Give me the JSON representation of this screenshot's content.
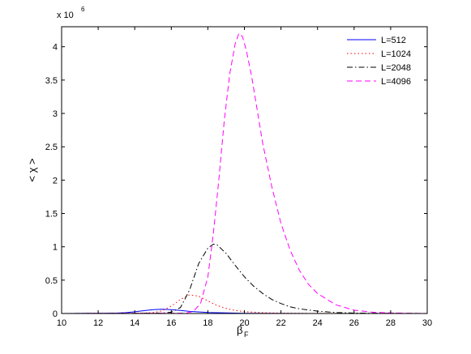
{
  "chart_data": {
    "type": "line",
    "title": "",
    "xlabel": "β",
    "xlabel_sub": "F",
    "ylabel": "< χ >",
    "y_multiplier_label": "x 10",
    "y_multiplier_exp": "6",
    "xlim": [
      10,
      30
    ],
    "ylim": [
      0,
      4.3
    ],
    "xticks": [
      10,
      12,
      14,
      16,
      18,
      20,
      22,
      24,
      26,
      28,
      30
    ],
    "yticks": [
      0,
      0.5,
      1,
      1.5,
      2,
      2.5,
      3,
      3.5,
      4
    ],
    "ytick_labels": [
      "0",
      "0.5",
      "1",
      "1.5",
      "2",
      "2.5",
      "3",
      "3.5",
      "4"
    ],
    "grid": false,
    "legend_position": "top-right",
    "series": [
      {
        "name": "L=512",
        "color": "#0000ff",
        "style": "solid",
        "x": [
          10,
          12,
          13,
          13.5,
          14,
          14.5,
          15,
          15.5,
          16,
          16.5,
          17,
          18,
          19,
          20,
          22,
          24,
          26,
          30
        ],
        "y": [
          0.0,
          0.002,
          0.006,
          0.012,
          0.025,
          0.042,
          0.058,
          0.064,
          0.058,
          0.045,
          0.032,
          0.016,
          0.008,
          0.004,
          0.001,
          0.0,
          0.0,
          0.0
        ]
      },
      {
        "name": "L=1024",
        "color": "#ff0000",
        "style": "dotted",
        "x": [
          10,
          14,
          15,
          15.5,
          16,
          16.5,
          17,
          17.5,
          18,
          18.5,
          19,
          19.5,
          20,
          21,
          22,
          24,
          30
        ],
        "y": [
          0.0,
          0.002,
          0.012,
          0.04,
          0.11,
          0.21,
          0.28,
          0.26,
          0.19,
          0.12,
          0.075,
          0.045,
          0.028,
          0.012,
          0.005,
          0.001,
          0.0
        ]
      },
      {
        "name": "L=2048",
        "color": "#000000",
        "style": "dashdot",
        "x": [
          10,
          15.5,
          16,
          16.5,
          17,
          17.5,
          18,
          18.3,
          18.5,
          19,
          19.5,
          20,
          20.5,
          21,
          21.5,
          22,
          22.5,
          23,
          24,
          25,
          26,
          30
        ],
        "y": [
          0.0,
          0.005,
          0.02,
          0.09,
          0.35,
          0.75,
          0.98,
          1.04,
          1.03,
          0.9,
          0.72,
          0.55,
          0.41,
          0.3,
          0.21,
          0.15,
          0.1,
          0.07,
          0.035,
          0.015,
          0.006,
          0.0
        ]
      },
      {
        "name": "L=4096",
        "color": "#ff00ff",
        "style": "dashed",
        "x": [
          10,
          16.8,
          17.2,
          17.6,
          18,
          18.3,
          18.6,
          18.9,
          19.2,
          19.5,
          19.7,
          19.9,
          20.1,
          20.4,
          20.7,
          21,
          21.5,
          22,
          22.5,
          23,
          23.5,
          24,
          25,
          26,
          27,
          28,
          30
        ],
        "y": [
          0.0,
          0.005,
          0.03,
          0.15,
          0.55,
          1.2,
          2.0,
          2.9,
          3.6,
          4.05,
          4.2,
          4.15,
          3.95,
          3.55,
          3.05,
          2.55,
          1.9,
          1.35,
          0.95,
          0.65,
          0.44,
          0.3,
          0.13,
          0.05,
          0.02,
          0.008,
          0.0
        ]
      }
    ]
  }
}
